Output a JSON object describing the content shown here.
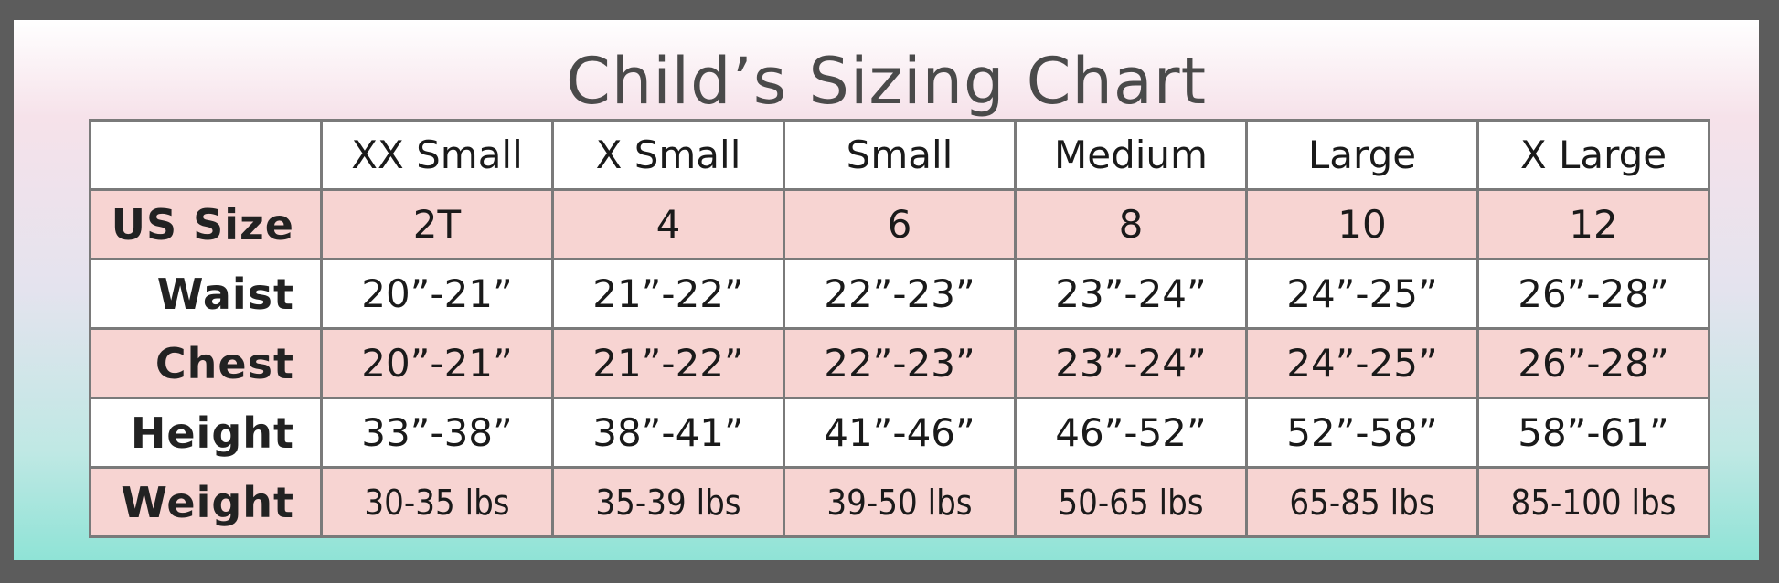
{
  "header": {
    "title": "Child’s Sizing Chart"
  },
  "table": {
    "columns": [
      "XX Small",
      "X Small",
      "Small",
      "Medium",
      "Large",
      "X Large"
    ],
    "rows": [
      {
        "label": "US Size",
        "cells": [
          "2T",
          "4",
          "6",
          "8",
          "10",
          "12"
        ]
      },
      {
        "label": "Waist",
        "cells": [
          "20”-21”",
          "21”-22”",
          "22”-23”",
          "23”-24”",
          "24”-25”",
          "26”-28”"
        ]
      },
      {
        "label": "Chest",
        "cells": [
          "20”-21”",
          "21”-22”",
          "22”-23”",
          "23”-24”",
          "24”-25”",
          "26”-28”"
        ]
      },
      {
        "label": "Height",
        "cells": [
          "33”-38”",
          "38”-41”",
          "41”-46”",
          "46”-52”",
          "52”-58”",
          "58”-61”"
        ]
      },
      {
        "label": "Weight",
        "cells": [
          "30-35 lbs",
          "35-39 lbs",
          "39-50 lbs",
          "50-65 lbs",
          "65-85 lbs",
          "85-100 lbs"
        ]
      }
    ]
  }
}
